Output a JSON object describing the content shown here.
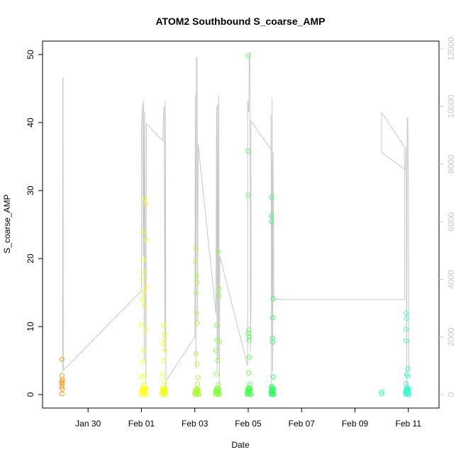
{
  "chart_data": {
    "type": "scatter",
    "title": "ATOM2 Southbound S_coarse_AMP",
    "xlabel": "Date",
    "ylabel": "S_coarse_AMP",
    "x_axis": {
      "type": "date",
      "range": [
        "2020-01-28T16:00",
        "2020-02-11T18:00"
      ],
      "ticks": [
        {
          "label": "Jan 30",
          "value": "2020-01-30"
        },
        {
          "label": "Feb 01",
          "value": "2020-02-01"
        },
        {
          "label": "Feb 03",
          "value": "2020-02-03"
        },
        {
          "label": "Feb 05",
          "value": "2020-02-05"
        },
        {
          "label": "Feb 07",
          "value": "2020-02-07"
        },
        {
          "label": "Feb 09",
          "value": "2020-02-09"
        },
        {
          "label": "Feb 11",
          "value": "2020-02-11"
        }
      ]
    },
    "y_left": {
      "range": [
        0,
        50
      ],
      "ticks": [
        0,
        10,
        20,
        30,
        40,
        50
      ]
    },
    "y_right": {
      "range": [
        0,
        12000
      ],
      "ticks": [
        0,
        2000,
        4000,
        6000,
        8000,
        10000,
        12000
      ],
      "color": "#c8c8c8"
    },
    "grid": false,
    "point_style": "open-circle",
    "point_color_scale": [
      "#ff8c00",
      "#ffd700",
      "#ccff00",
      "#7fff00",
      "#00ff40",
      "#00ffc0"
    ],
    "points": [
      {
        "x": "2020-01-29T00:30",
        "y": 5.2,
        "color": "#ff9a1a"
      },
      {
        "x": "2020-01-29T00:30",
        "y": 2.8,
        "color": "#ff9a1a"
      },
      {
        "x": "2020-01-29T00:30",
        "y": 2.0,
        "color": "#ff9a1a"
      },
      {
        "x": "2020-01-29T00:50",
        "y": 1.6,
        "color": "#ff9a1a"
      },
      {
        "x": "2020-01-29T00:20",
        "y": 1.2,
        "color": "#ff9a1a"
      },
      {
        "x": "2020-01-29T00:40",
        "y": 0.8,
        "color": "#ff9a1a"
      },
      {
        "x": "2020-01-29T01:00",
        "y": 2.2,
        "color": "#ff9a1a"
      },
      {
        "x": "2020-01-29T00:30",
        "y": 0.1,
        "color": "#ff9a1a"
      },
      {
        "x": "2020-01-29T00:10",
        "y": 1.8,
        "color": "#ff9a1a"
      },
      {
        "x": "2020-02-01T03:00",
        "y": 28.8,
        "color": "#ffff22"
      },
      {
        "x": "2020-02-01T04:00",
        "y": 28.0,
        "color": "#ffff22"
      },
      {
        "x": "2020-02-01T02:00",
        "y": 24.0,
        "color": "#ffff22"
      },
      {
        "x": "2020-02-01T04:00",
        "y": 22.8,
        "color": "#ffff22"
      },
      {
        "x": "2020-02-01T02:00",
        "y": 19.8,
        "color": "#ffff22"
      },
      {
        "x": "2020-02-01T03:00",
        "y": 18.0,
        "color": "#ffff22"
      },
      {
        "x": "2020-02-01T01:00",
        "y": 17.0,
        "color": "#ffff22"
      },
      {
        "x": "2020-02-01T04:00",
        "y": 15.8,
        "color": "#ffff22"
      },
      {
        "x": "2020-02-01T02:00",
        "y": 15.0,
        "color": "#ffff22"
      },
      {
        "x": "2020-02-01T01:00",
        "y": 14.0,
        "color": "#ffff22"
      },
      {
        "x": "2020-02-01T03:00",
        "y": 13.0,
        "color": "#ffff22"
      },
      {
        "x": "2020-02-01T00:00",
        "y": 10.3,
        "color": "#ffff22"
      },
      {
        "x": "2020-02-01T04:00",
        "y": 9.5,
        "color": "#ffff22"
      },
      {
        "x": "2020-02-01T02:00",
        "y": 6.5,
        "color": "#ffff22"
      },
      {
        "x": "2020-02-01T01:00",
        "y": 4.8,
        "color": "#ffff22"
      },
      {
        "x": "2020-02-01T03:00",
        "y": 2.8,
        "color": "#ffff22"
      },
      {
        "x": "2020-02-01T00:00",
        "y": 2.6,
        "color": "#ffff22"
      },
      {
        "x": "2020-02-01T02:00",
        "y": 1.5,
        "color": "#ffff22"
      },
      {
        "x": "2020-02-01T04:00",
        "y": 0.9,
        "color": "#ffff22"
      },
      {
        "x": "2020-02-01T03:00",
        "y": 0.5,
        "color": "#ffff22"
      },
      {
        "x": "2020-02-01T01:00",
        "y": 0.3,
        "color": "#ffff22"
      },
      {
        "x": "2020-02-01T02:00",
        "y": 0.1,
        "color": "#ffff22"
      },
      {
        "x": "2020-02-01T20:00",
        "y": 10.2,
        "color": "#eeff22"
      },
      {
        "x": "2020-02-01T21:00",
        "y": 9.0,
        "color": "#eeff22"
      },
      {
        "x": "2020-02-01T20:30",
        "y": 8.2,
        "color": "#eeff22"
      },
      {
        "x": "2020-02-01T19:30",
        "y": 7.5,
        "color": "#eeff22"
      },
      {
        "x": "2020-02-01T21:00",
        "y": 6.5,
        "color": "#eeff22"
      },
      {
        "x": "2020-02-01T20:00",
        "y": 5.0,
        "color": "#eeff22"
      },
      {
        "x": "2020-02-01T19:00",
        "y": 3.0,
        "color": "#eeff22"
      },
      {
        "x": "2020-02-01T20:30",
        "y": 2.0,
        "color": "#eeff22"
      },
      {
        "x": "2020-02-01T19:30",
        "y": 1.0,
        "color": "#eeff22"
      },
      {
        "x": "2020-02-01T21:00",
        "y": 0.5,
        "color": "#eeff22"
      },
      {
        "x": "2020-02-01T20:00",
        "y": 0.2,
        "color": "#eeff22"
      },
      {
        "x": "2020-02-03T01:00",
        "y": 21.5,
        "color": "#aaff33"
      },
      {
        "x": "2020-02-03T00:30",
        "y": 19.5,
        "color": "#aaff33"
      },
      {
        "x": "2020-02-03T01:30",
        "y": 17.5,
        "color": "#aaff33"
      },
      {
        "x": "2020-02-03T02:00",
        "y": 16.5,
        "color": "#aaff33"
      },
      {
        "x": "2020-02-03T01:00",
        "y": 15.0,
        "color": "#aaff33"
      },
      {
        "x": "2020-02-03T01:30",
        "y": 12.0,
        "color": "#aaff33"
      },
      {
        "x": "2020-02-03T02:00",
        "y": 10.5,
        "color": "#aaff33"
      },
      {
        "x": "2020-02-03T01:00",
        "y": 6.0,
        "color": "#aaff33"
      },
      {
        "x": "2020-02-03T02:00",
        "y": 4.5,
        "color": "#aaff33"
      },
      {
        "x": "2020-02-03T03:00",
        "y": 2.5,
        "color": "#aaff33"
      },
      {
        "x": "2020-02-03T02:30",
        "y": 1.5,
        "color": "#aaff33"
      },
      {
        "x": "2020-02-03T01:30",
        "y": 0.8,
        "color": "#aaff33"
      },
      {
        "x": "2020-02-03T01:00",
        "y": 0.3,
        "color": "#aaff33"
      },
      {
        "x": "2020-02-03T02:00",
        "y": 0.1,
        "color": "#aaff33"
      },
      {
        "x": "2020-02-03T21:00",
        "y": 21.0,
        "color": "#88ff44"
      },
      {
        "x": "2020-02-03T22:00",
        "y": 15.5,
        "color": "#88ff44"
      },
      {
        "x": "2020-02-03T21:30",
        "y": 14.5,
        "color": "#88ff44"
      },
      {
        "x": "2020-02-03T19:30",
        "y": 10.2,
        "color": "#88ff44"
      },
      {
        "x": "2020-02-03T20:00",
        "y": 8.0,
        "color": "#88ff44"
      },
      {
        "x": "2020-02-03T22:00",
        "y": 7.8,
        "color": "#88ff44"
      },
      {
        "x": "2020-02-03T19:00",
        "y": 6.5,
        "color": "#88ff44"
      },
      {
        "x": "2020-02-03T20:30",
        "y": 5.0,
        "color": "#88ff44"
      },
      {
        "x": "2020-02-03T19:30",
        "y": 3.0,
        "color": "#88ff44"
      },
      {
        "x": "2020-02-03T21:00",
        "y": 1.5,
        "color": "#88ff44"
      },
      {
        "x": "2020-02-03T20:00",
        "y": 0.6,
        "color": "#88ff44"
      },
      {
        "x": "2020-02-03T21:30",
        "y": 0.2,
        "color": "#88ff44"
      },
      {
        "x": "2020-02-05T00:00",
        "y": 49.8,
        "color": "#55ff55"
      },
      {
        "x": "2020-02-05T00:00",
        "y": 35.8,
        "color": "#55ff55"
      },
      {
        "x": "2020-02-05T00:00",
        "y": 29.3,
        "color": "#55ff55"
      },
      {
        "x": "2020-02-05T00:30",
        "y": 9.5,
        "color": "#55ff55"
      },
      {
        "x": "2020-02-05T00:00",
        "y": 9.0,
        "color": "#55ff55"
      },
      {
        "x": "2020-02-05T01:00",
        "y": 8.5,
        "color": "#55ff55"
      },
      {
        "x": "2020-02-05T00:30",
        "y": 8.0,
        "color": "#55ff55"
      },
      {
        "x": "2020-02-05T01:00",
        "y": 5.5,
        "color": "#55ff55"
      },
      {
        "x": "2020-02-05T00:30",
        "y": 3.2,
        "color": "#55ff55"
      },
      {
        "x": "2020-02-05T01:30",
        "y": 1.5,
        "color": "#55ff55"
      },
      {
        "x": "2020-02-05T00:00",
        "y": 0.8,
        "color": "#55ff55"
      },
      {
        "x": "2020-02-05T01:00",
        "y": 0.3,
        "color": "#55ff55"
      },
      {
        "x": "2020-02-05T00:30",
        "y": 0.1,
        "color": "#55ff55"
      },
      {
        "x": "2020-02-05T21:00",
        "y": 29.0,
        "color": "#33ff66"
      },
      {
        "x": "2020-02-05T21:00",
        "y": 26.3,
        "color": "#33ff66"
      },
      {
        "x": "2020-02-05T21:00",
        "y": 25.4,
        "color": "#33ff66"
      },
      {
        "x": "2020-02-05T22:30",
        "y": 14.1,
        "color": "#33ff66"
      },
      {
        "x": "2020-02-05T22:00",
        "y": 11.3,
        "color": "#33ff66"
      },
      {
        "x": "2020-02-05T22:00",
        "y": 8.3,
        "color": "#33ff66"
      },
      {
        "x": "2020-02-05T22:00",
        "y": 7.7,
        "color": "#33ff66"
      },
      {
        "x": "2020-02-05T22:30",
        "y": 2.6,
        "color": "#33ff66"
      },
      {
        "x": "2020-02-05T21:00",
        "y": 1.2,
        "color": "#33ff66"
      },
      {
        "x": "2020-02-05T21:30",
        "y": 0.5,
        "color": "#33ff66"
      },
      {
        "x": "2020-02-05T22:00",
        "y": 0.1,
        "color": "#33ff66"
      },
      {
        "x": "2020-02-10T00:00",
        "y": 0.4,
        "color": "#33ffbb"
      },
      {
        "x": "2020-02-10T00:00",
        "y": 0.1,
        "color": "#33ffbb"
      },
      {
        "x": "2020-02-10T22:00",
        "y": 12.0,
        "color": "#33ffcc"
      },
      {
        "x": "2020-02-10T22:30",
        "y": 11.2,
        "color": "#33ffcc"
      },
      {
        "x": "2020-02-10T22:00",
        "y": 9.6,
        "color": "#33ffcc"
      },
      {
        "x": "2020-02-10T22:00",
        "y": 7.9,
        "color": "#33ffcc"
      },
      {
        "x": "2020-02-10T23:30",
        "y": 3.8,
        "color": "#33ffcc"
      },
      {
        "x": "2020-02-10T22:30",
        "y": 3.0,
        "color": "#33ffcc"
      },
      {
        "x": "2020-02-10T23:30",
        "y": 2.7,
        "color": "#33ffcc"
      },
      {
        "x": "2020-02-10T22:00",
        "y": 1.6,
        "color": "#33ffcc"
      },
      {
        "x": "2020-02-10T23:00",
        "y": 1.0,
        "color": "#33ffcc"
      },
      {
        "x": "2020-02-10T22:30",
        "y": 0.5,
        "color": "#33ffcc"
      },
      {
        "x": "2020-02-10T23:00",
        "y": 0.2,
        "color": "#33ffcc"
      }
    ],
    "dense_clusters": [
      {
        "from": "2020-02-01T00:00",
        "to": "2020-02-01T04:00",
        "y_max": 1.0,
        "color": "#ffff22"
      },
      {
        "from": "2020-02-01T18:30",
        "to": "2020-02-01T22:00",
        "y_max": 1.0,
        "color": "#eeff22"
      },
      {
        "from": "2020-02-03T00:00",
        "to": "2020-02-03T03:30",
        "y_max": 0.8,
        "color": "#aaff33"
      },
      {
        "from": "2020-02-03T18:30",
        "to": "2020-02-03T22:00",
        "y_max": 0.9,
        "color": "#88ff44"
      },
      {
        "from": "2020-02-04T23:00",
        "to": "2020-02-05T02:30",
        "y_max": 1.0,
        "color": "#55ff55"
      },
      {
        "from": "2020-02-05T20:30",
        "to": "2020-02-05T23:00",
        "y_max": 1.0,
        "color": "#33ff66"
      },
      {
        "from": "2020-02-10T21:30",
        "to": "2020-02-11T00:30",
        "y_max": 1.0,
        "color": "#33ffcc"
      }
    ],
    "line_series": {
      "axis": "right",
      "color": "#c8c8c8",
      "points": [
        [
          "2020-01-29T01:00",
          800
        ],
        [
          "2020-01-29T01:10",
          6000
        ],
        [
          "2020-01-29T01:20",
          11000
        ],
        [
          "2020-01-29T01:30",
          11000
        ],
        [
          "2020-01-29T01:40",
          1500
        ],
        [
          "2020-01-29T02:00",
          850
        ],
        [
          "2020-02-01T00:00",
          3600
        ],
        [
          "2020-02-01T00:00",
          9400
        ],
        [
          "2020-02-01T00:30",
          9500
        ],
        [
          "2020-02-01T01:00",
          10100
        ],
        [
          "2020-02-01T01:30",
          4800
        ],
        [
          "2020-02-01T02:00",
          10200
        ],
        [
          "2020-02-01T02:30",
          1200
        ],
        [
          "2020-02-01T03:00",
          9800
        ],
        [
          "2020-02-01T04:00",
          200
        ],
        [
          "2020-02-01T04:30",
          9400
        ],
        [
          "2020-02-01T19:30",
          8800
        ],
        [
          "2020-02-01T19:30",
          9400
        ],
        [
          "2020-02-01T20:30",
          10000
        ],
        [
          "2020-02-01T21:00",
          1500
        ],
        [
          "2020-02-01T21:30",
          10200
        ],
        [
          "2020-02-01T22:00",
          200
        ],
        [
          "2020-02-01T22:30",
          500
        ],
        [
          "2020-02-03T00:00",
          2000
        ],
        [
          "2020-02-03T00:30",
          10400
        ],
        [
          "2020-02-03T01:00",
          900
        ],
        [
          "2020-02-03T01:30",
          11700
        ],
        [
          "2020-02-03T02:00",
          11700
        ],
        [
          "2020-02-03T02:30",
          2500
        ],
        [
          "2020-02-03T03:00",
          8700
        ],
        [
          "2020-02-03T19:00",
          2800
        ],
        [
          "2020-02-03T19:30",
          10000
        ],
        [
          "2020-02-03T20:00",
          800
        ],
        [
          "2020-02-03T20:30",
          10100
        ],
        [
          "2020-02-03T21:00",
          1200
        ],
        [
          "2020-02-03T21:30",
          10400
        ],
        [
          "2020-02-03T22:00",
          300
        ],
        [
          "2020-02-03T22:30",
          4800
        ],
        [
          "2020-02-04T23:30",
          1000
        ],
        [
          "2020-02-04T23:30",
          10200
        ],
        [
          "2020-02-05T00:30",
          9800
        ],
        [
          "2020-02-05T01:00",
          11700
        ],
        [
          "2020-02-05T01:30",
          11900
        ],
        [
          "2020-02-05T02:00",
          1500
        ],
        [
          "2020-02-05T02:30",
          3200
        ],
        [
          "2020-02-05T02:30",
          9500
        ],
        [
          "2020-02-05T20:30",
          8500
        ],
        [
          "2020-02-05T20:30",
          9700
        ],
        [
          "2020-02-05T21:00",
          400
        ],
        [
          "2020-02-05T21:30",
          10300
        ],
        [
          "2020-02-05T22:00",
          800
        ],
        [
          "2020-02-05T22:30",
          8400
        ],
        [
          "2020-02-05T23:00",
          3300
        ],
        [
          "2020-02-10T20:30",
          3300
        ],
        [
          "2020-02-10T20:30",
          8600
        ],
        [
          "2020-02-10T00:00",
          9800
        ],
        [
          "2020-02-10T00:00",
          8400
        ],
        [
          "2020-02-10T21:30",
          7800
        ],
        [
          "2020-02-10T22:00",
          8600
        ],
        [
          "2020-02-10T22:30",
          300
        ],
        [
          "2020-02-10T23:00",
          9600
        ],
        [
          "2020-02-10T23:30",
          9600
        ],
        [
          "2020-02-11T00:00",
          7100
        ],
        [
          "2020-02-11T00:30",
          800
        ]
      ]
    }
  }
}
